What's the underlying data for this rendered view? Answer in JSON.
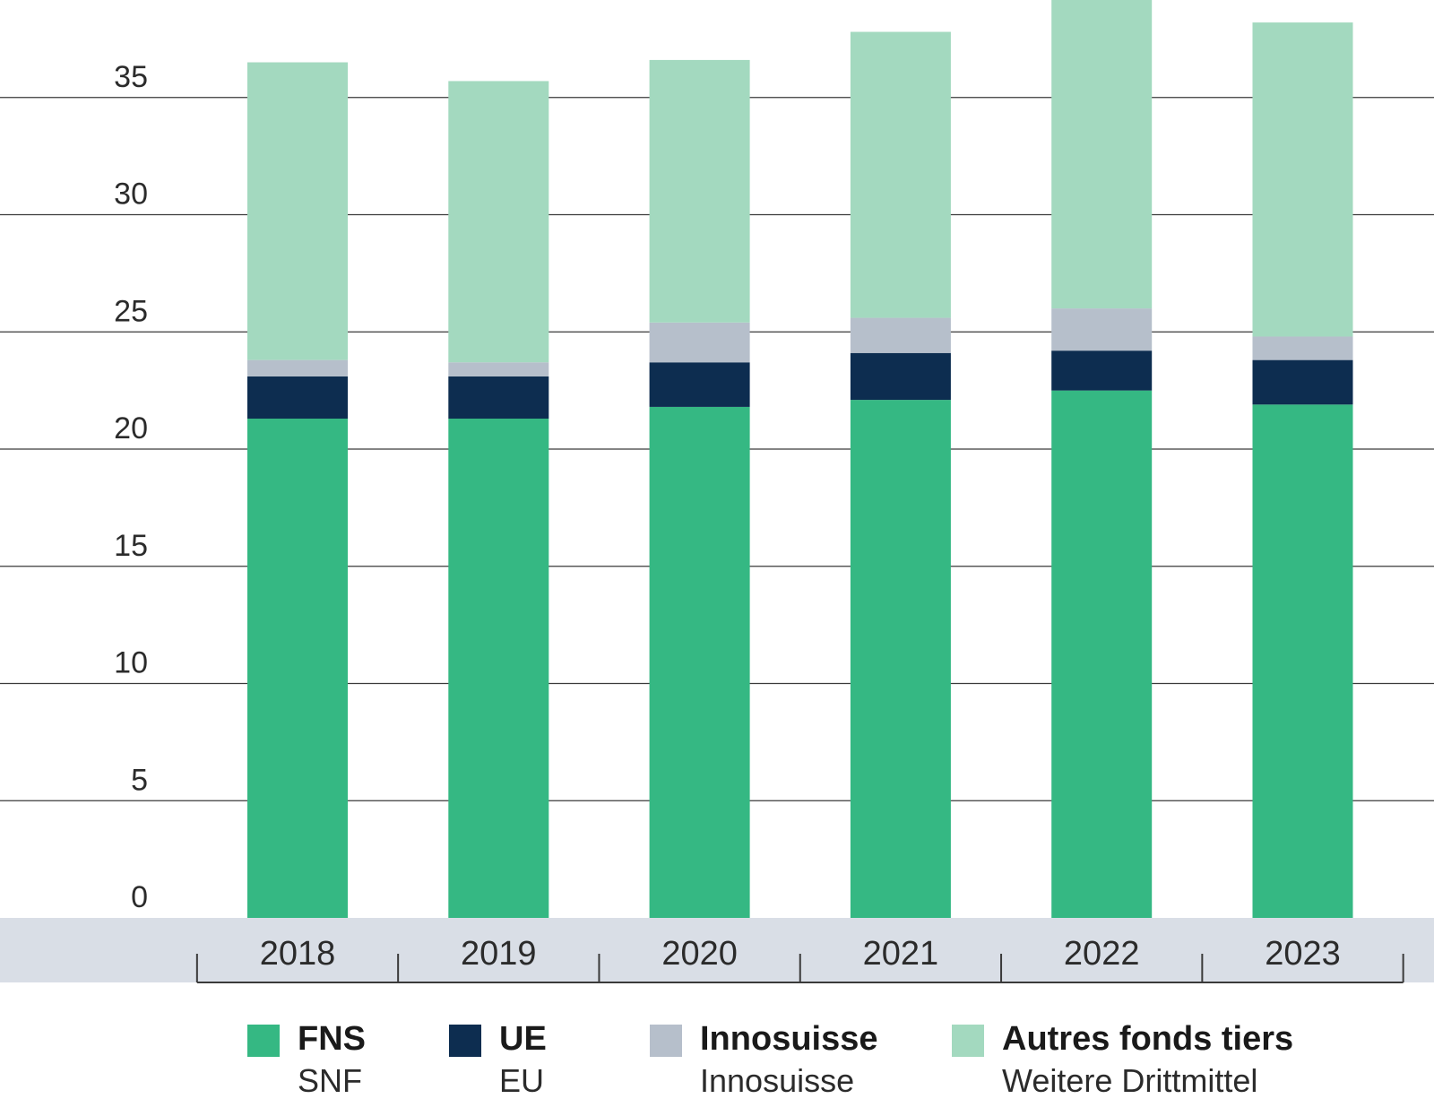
{
  "chart_data": {
    "type": "bar",
    "stacked": true,
    "categories": [
      "2018",
      "2019",
      "2020",
      "2021",
      "2022",
      "2023"
    ],
    "series": [
      {
        "name": "FNS",
        "name_alt": "SNF",
        "color": "#35b883",
        "values": [
          21.3,
          21.3,
          21.8,
          22.1,
          22.5,
          21.9
        ]
      },
      {
        "name": "UE",
        "name_alt": "EU",
        "color": "#0d2d50",
        "values": [
          1.8,
          1.8,
          1.9,
          2.0,
          1.7,
          1.9
        ]
      },
      {
        "name": "Innosuisse",
        "name_alt": "Innosuisse",
        "color": "#b6bfcb",
        "values": [
          0.7,
          0.6,
          1.7,
          1.5,
          1.8,
          1.0
        ]
      },
      {
        "name": "Autres fonds tiers",
        "name_alt": "Weitere Drittmittel",
        "color": "#a3d9bf",
        "values": [
          12.7,
          12.0,
          11.2,
          12.2,
          13.2,
          13.4
        ]
      }
    ],
    "yticks": [
      0,
      5,
      10,
      15,
      20,
      25,
      30,
      35
    ],
    "ylim": [
      0,
      39
    ],
    "grid": true,
    "legend": "bottom",
    "axis_band_color": "#d9dee6",
    "gridline_color": "#3a3a3a"
  }
}
